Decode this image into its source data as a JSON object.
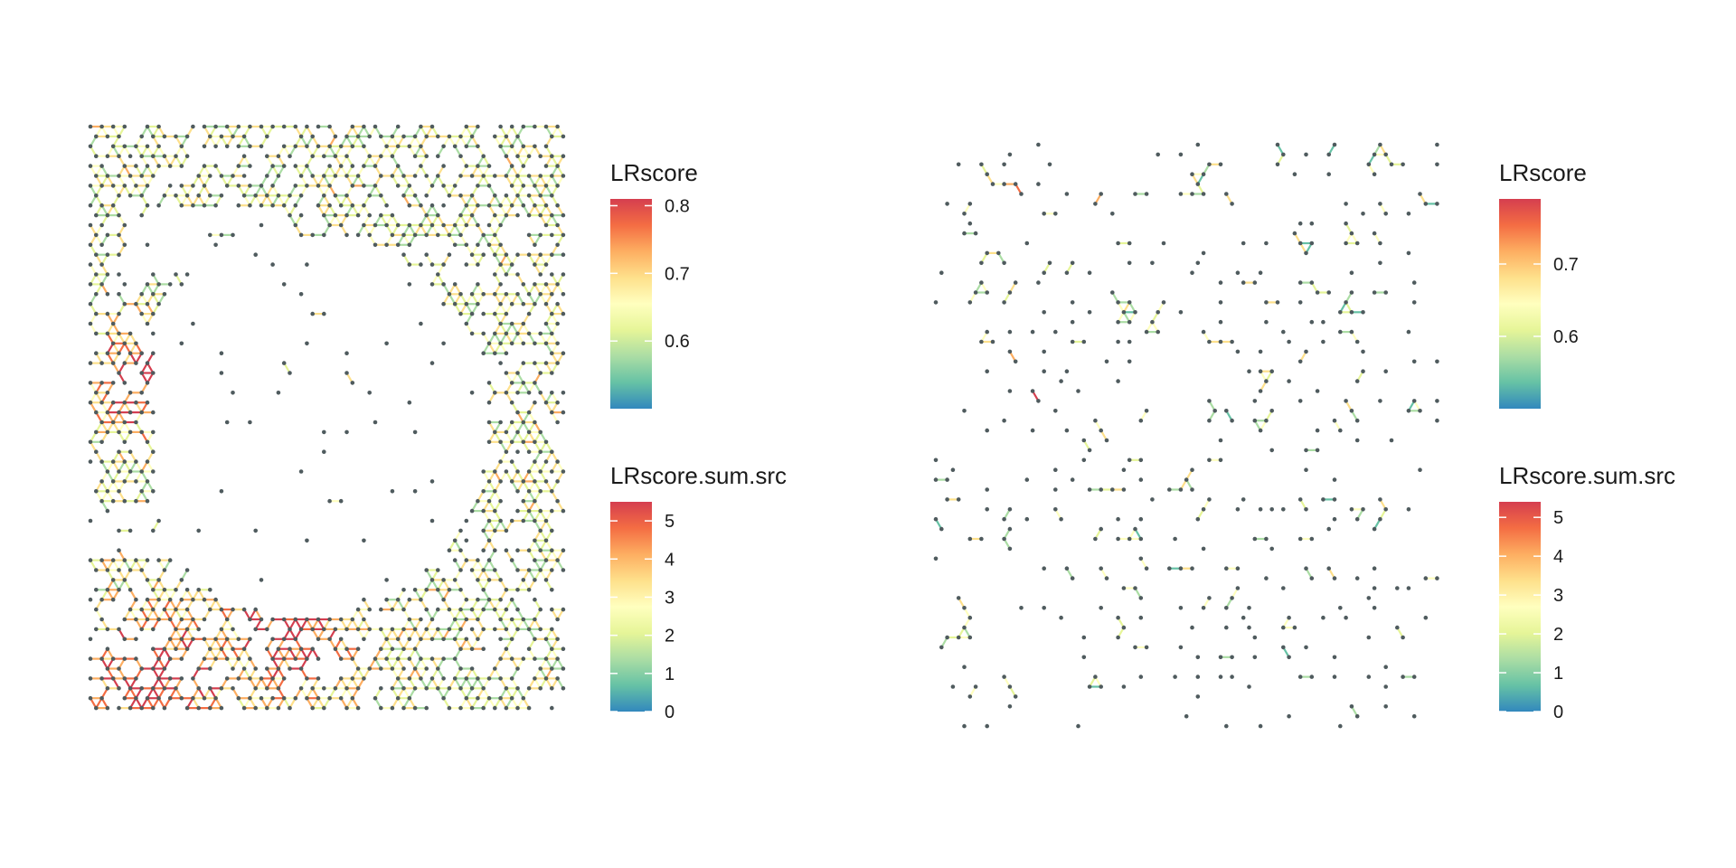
{
  "palette": [
    "#3288BD",
    "#66C2A5",
    "#ABDDA4",
    "#E6F598",
    "#FFFFBF",
    "#FEE08B",
    "#FDAE61",
    "#F46D43",
    "#D53E4F"
  ],
  "chart_data": [
    {
      "type": "scatter",
      "description_of_marks": "spatial spots (grey points) connected by short line segments colored by LRscore",
      "legends": [
        {
          "title": "LRscore",
          "range": [
            0.5,
            0.81
          ],
          "ticks": [
            0.6,
            0.7,
            0.8
          ],
          "tick_labels": [
            "0.6",
            "0.7",
            "0.8"
          ]
        },
        {
          "title": "LRscore.sum.src",
          "range": [
            0,
            5.5
          ],
          "ticks": [
            0,
            1,
            2,
            3,
            4,
            5
          ],
          "tick_labels": [
            "0",
            "1",
            "2",
            "3",
            "4",
            "5"
          ]
        }
      ],
      "grid": false,
      "axes": false
    },
    {
      "type": "scatter",
      "description_of_marks": "spatial spots (grey points) connected by short line segments colored by LRscore",
      "legends": [
        {
          "title": "LRscore",
          "range": [
            0.5,
            0.79
          ],
          "ticks": [
            0.6,
            0.7
          ],
          "tick_labels": [
            "0.6",
            "0.7"
          ]
        },
        {
          "title": "LRscore.sum.src",
          "range": [
            0,
            5.4
          ],
          "ticks": [
            0,
            1,
            2,
            3,
            4,
            5
          ],
          "tick_labels": [
            "0",
            "1",
            "2",
            "3",
            "4",
            "5"
          ]
        }
      ],
      "grid": false,
      "axes": false
    }
  ]
}
